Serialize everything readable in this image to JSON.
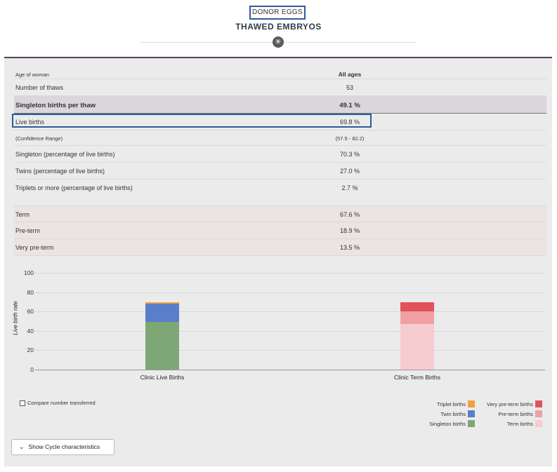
{
  "header": {
    "donor_label": "DONOR EGGS",
    "title": "THAWED EMBRYOS",
    "badge_glyph": "✳"
  },
  "table": {
    "age_label": "Age of woman",
    "age_value": "All ages",
    "rows": [
      {
        "label": "Number of thaws",
        "value": "53"
      },
      {
        "label": "Singleton births per thaw",
        "value": "49.1 %"
      },
      {
        "label": "Live births",
        "value": "69.8 %"
      },
      {
        "label": "(Confidence Range)",
        "value": "(57.5 - 82.2)"
      },
      {
        "label": "Singleton (percentage of live births)",
        "value": "70.3 %"
      },
      {
        "label": "Twins (percentage of live births)",
        "value": "27.0 %"
      },
      {
        "label": "Triplets or more (percentage of live births)",
        "value": "2.7 %"
      },
      {
        "label": "Term",
        "value": "67.6 %"
      },
      {
        "label": "Pre-term",
        "value": "18.9 %"
      },
      {
        "label": "Very pre-term",
        "value": "13.5 %"
      }
    ]
  },
  "chart_data": {
    "type": "bar",
    "stacked": true,
    "categories": [
      "Clinic Live Births",
      "Clinic Term Births"
    ],
    "ylabel": "Live birth rate",
    "ylim": [
      0,
      100
    ],
    "yticks": [
      0,
      20,
      40,
      60,
      80,
      100
    ],
    "series": [
      {
        "name": "Singleton births",
        "color": "#7ea776",
        "values": [
          49.1,
          0
        ]
      },
      {
        "name": "Twin births",
        "color": "#5b7ec9",
        "values": [
          18.8,
          0
        ]
      },
      {
        "name": "Triplet births",
        "color": "#f0a040",
        "values": [
          1.9,
          0
        ]
      },
      {
        "name": "Term births",
        "color": "#f6ccd0",
        "values": [
          0,
          47.2
        ]
      },
      {
        "name": "Pre-term births",
        "color": "#f0a0a4",
        "values": [
          0,
          13.2
        ]
      },
      {
        "name": "Very pre-term births",
        "color": "#e0535b",
        "values": [
          0,
          9.4
        ]
      }
    ],
    "legend_position": "bottom-right"
  },
  "controls": {
    "compare_label": "Compare number transferred",
    "cycle_button_label": "Show Cycle characteristics"
  }
}
